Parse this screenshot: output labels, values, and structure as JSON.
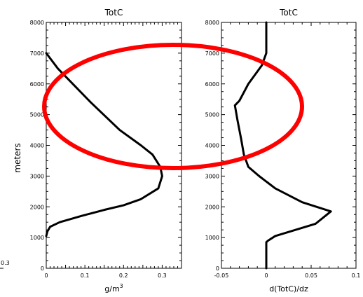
{
  "chart_data": [
    {
      "type": "line",
      "title": "TotC",
      "xlabel": "g/m",
      "xlabel_sup": "3",
      "ylabel": "meters",
      "xlim": [
        0,
        0.35
      ],
      "ylim": [
        0,
        8000
      ],
      "xticks": [
        "0",
        "0.1",
        "0.2",
        "0.3"
      ],
      "yticks": [
        "0",
        "1000",
        "2000",
        "3000",
        "4000",
        "5000",
        "6000",
        "7000",
        "8000"
      ],
      "series": [
        {
          "x": [
            0.0,
            0.003,
            0.01,
            0.035,
            0.09,
            0.15,
            0.2,
            0.245,
            0.29,
            0.3,
            0.295,
            0.275,
            0.245,
            0.19,
            0.115,
            0.03,
            0.0
          ],
          "y": [
            1050,
            1200,
            1350,
            1500,
            1700,
            1900,
            2050,
            2250,
            2600,
            3000,
            3300,
            3700,
            4000,
            4500,
            5400,
            6500,
            7000
          ]
        }
      ]
    },
    {
      "type": "line",
      "title": "TotC",
      "xlabel": "d(TotC)/dz",
      "xlim": [
        -0.05,
        0.1
      ],
      "ylim": [
        0,
        8000
      ],
      "xticks": [
        "-0.05",
        "0",
        "0.05",
        "0.1"
      ],
      "yticks": [
        "0",
        "1000",
        "2000",
        "3000",
        "4000",
        "5000",
        "6000",
        "7000",
        "8000"
      ],
      "series": [
        {
          "x": [
            0.0,
            0.0,
            0.002,
            0.01,
            0.055,
            0.072,
            0.04,
            0.01,
            -0.008,
            -0.02,
            -0.025,
            -0.028,
            -0.032,
            -0.035,
            -0.03,
            -0.02,
            -0.005,
            0.0,
            0.0
          ],
          "y": [
            0,
            850,
            900,
            1050,
            1450,
            1850,
            2150,
            2600,
            3000,
            3300,
            3700,
            4200,
            4800,
            5300,
            5450,
            6000,
            6600,
            7000,
            8000
          ]
        }
      ]
    }
  ],
  "left_edge": {
    "tick_fragment": "0.3"
  },
  "annotation": {
    "shape": "ellipse",
    "color": "#ff0000"
  }
}
